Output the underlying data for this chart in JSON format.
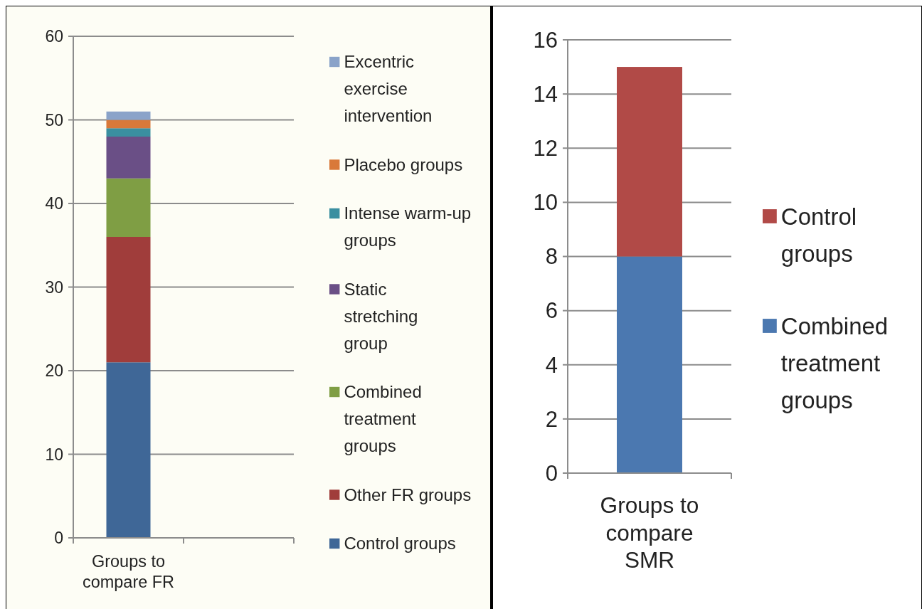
{
  "chart_data": [
    {
      "type": "bar",
      "stacked": true,
      "categories": [
        "Groups to compare FR",
        null
      ],
      "ylim": [
        0,
        60
      ],
      "yticks": [
        0,
        10,
        20,
        30,
        40,
        50,
        60
      ],
      "grid": "y",
      "legend": "right",
      "series": [
        {
          "name": "Control groups",
          "color": "#3f6797",
          "values": [
            21,
            null
          ]
        },
        {
          "name": "Other FR groups",
          "color": "#a03d3b",
          "values": [
            15,
            null
          ]
        },
        {
          "name": "Combined treatment groups",
          "color": "#7f9e44",
          "values": [
            7,
            null
          ]
        },
        {
          "name": "Static stretching group",
          "color": "#6a4f86",
          "values": [
            5,
            null
          ]
        },
        {
          "name": "Intense warm-up groups",
          "color": "#3a8fa0",
          "values": [
            1,
            null
          ]
        },
        {
          "name": "Placebo groups",
          "color": "#d9793a",
          "values": [
            1,
            null
          ]
        },
        {
          "name": "Excentric exercise intervention",
          "color": "#8aa3c9",
          "values": [
            1,
            null
          ]
        }
      ]
    },
    {
      "type": "bar",
      "stacked": true,
      "categories": [
        "Groups to compare SMR"
      ],
      "ylim": [
        0,
        16
      ],
      "yticks": [
        0,
        2,
        4,
        6,
        8,
        10,
        12,
        14,
        16
      ],
      "grid": "y",
      "legend": "right",
      "series": [
        {
          "name": "Combined treatment groups",
          "color": "#4b78b0",
          "values": [
            8
          ]
        },
        {
          "name": "Control groups",
          "color": "#b14a47",
          "values": [
            7
          ]
        }
      ]
    }
  ]
}
